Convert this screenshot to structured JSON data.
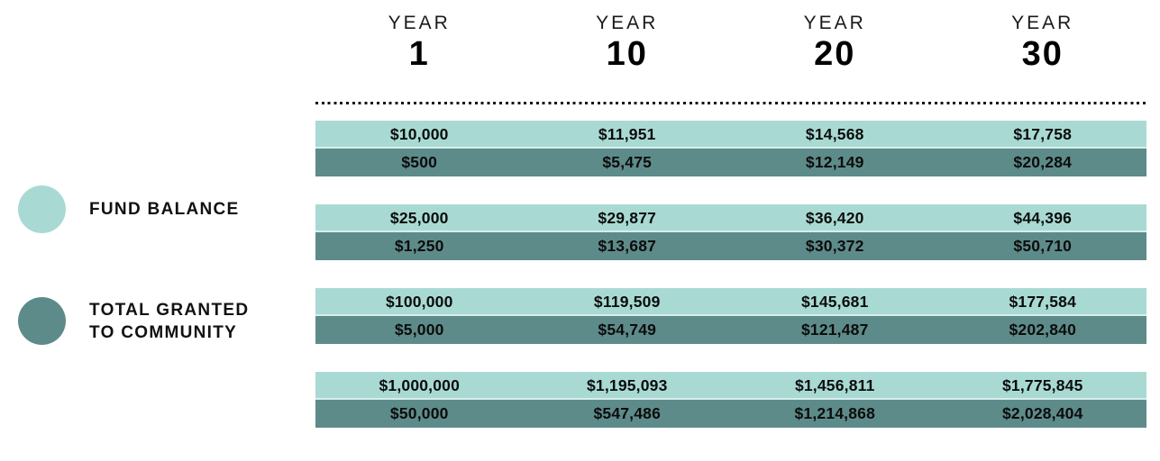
{
  "legend": {
    "items": [
      {
        "series": "fund-balance",
        "label": "FUND BALANCE",
        "line1": "FUND BALANCE",
        "line2": "",
        "color": "#a8dad3"
      },
      {
        "series": "total-granted-to-community",
        "label": "TOTAL GRANTED TO COMMUNITY",
        "line1": "TOTAL GRANTED",
        "line2": "TO COMMUNITY",
        "color": "#5d8b8a"
      }
    ]
  },
  "header": {
    "columns": [
      {
        "label": "YEAR",
        "number": "1"
      },
      {
        "label": "YEAR",
        "number": "10"
      },
      {
        "label": "YEAR",
        "number": "20"
      },
      {
        "label": "YEAR",
        "number": "30"
      }
    ]
  },
  "colors": {
    "fund_balance_row": "#a8dad3",
    "total_granted_row": "#5d8b8a",
    "text": "#111111"
  },
  "table": {
    "groups": [
      {
        "light": [
          "$10,000",
          "$11,951",
          "$14,568",
          "$17,758"
        ],
        "dark": [
          "$500",
          "$5,475",
          "$12,149",
          "$20,284"
        ]
      },
      {
        "light": [
          "$25,000",
          "$29,877",
          "$36,420",
          "$44,396"
        ],
        "dark": [
          "$1,250",
          "$13,687",
          "$30,372",
          "$50,710"
        ]
      },
      {
        "light": [
          "$100,000",
          "$119,509",
          "$145,681",
          "$177,584"
        ],
        "dark": [
          "$5,000",
          "$54,749",
          "$121,487",
          "$202,840"
        ]
      },
      {
        "light": [
          "$1,000,000",
          "$1,195,093",
          "$1,456,811",
          "$1,775,845"
        ],
        "dark": [
          "$50,000",
          "$547,486",
          "$1,214,868",
          "$2,028,404"
        ]
      }
    ]
  },
  "chart_data": {
    "type": "table",
    "title": "",
    "columns": [
      "YEAR 1",
      "YEAR 10",
      "YEAR 20",
      "YEAR 30"
    ],
    "row_series": [
      "FUND BALANCE",
      "TOTAL GRANTED TO COMMUNITY"
    ],
    "legend_position": "left",
    "groups": [
      {
        "fund_balance": [
          10000,
          11951,
          14568,
          17758
        ],
        "total_granted_to_community": [
          500,
          5475,
          12149,
          20284
        ]
      },
      {
        "fund_balance": [
          25000,
          29877,
          36420,
          44396
        ],
        "total_granted_to_community": [
          1250,
          13687,
          30372,
          50710
        ]
      },
      {
        "fund_balance": [
          100000,
          119509,
          145681,
          177584
        ],
        "total_granted_to_community": [
          5000,
          54749,
          121487,
          202840
        ]
      },
      {
        "fund_balance": [
          1000000,
          1195093,
          1456811,
          1775845
        ],
        "total_granted_to_community": [
          50000,
          547486,
          1214868,
          2028404
        ]
      }
    ]
  }
}
